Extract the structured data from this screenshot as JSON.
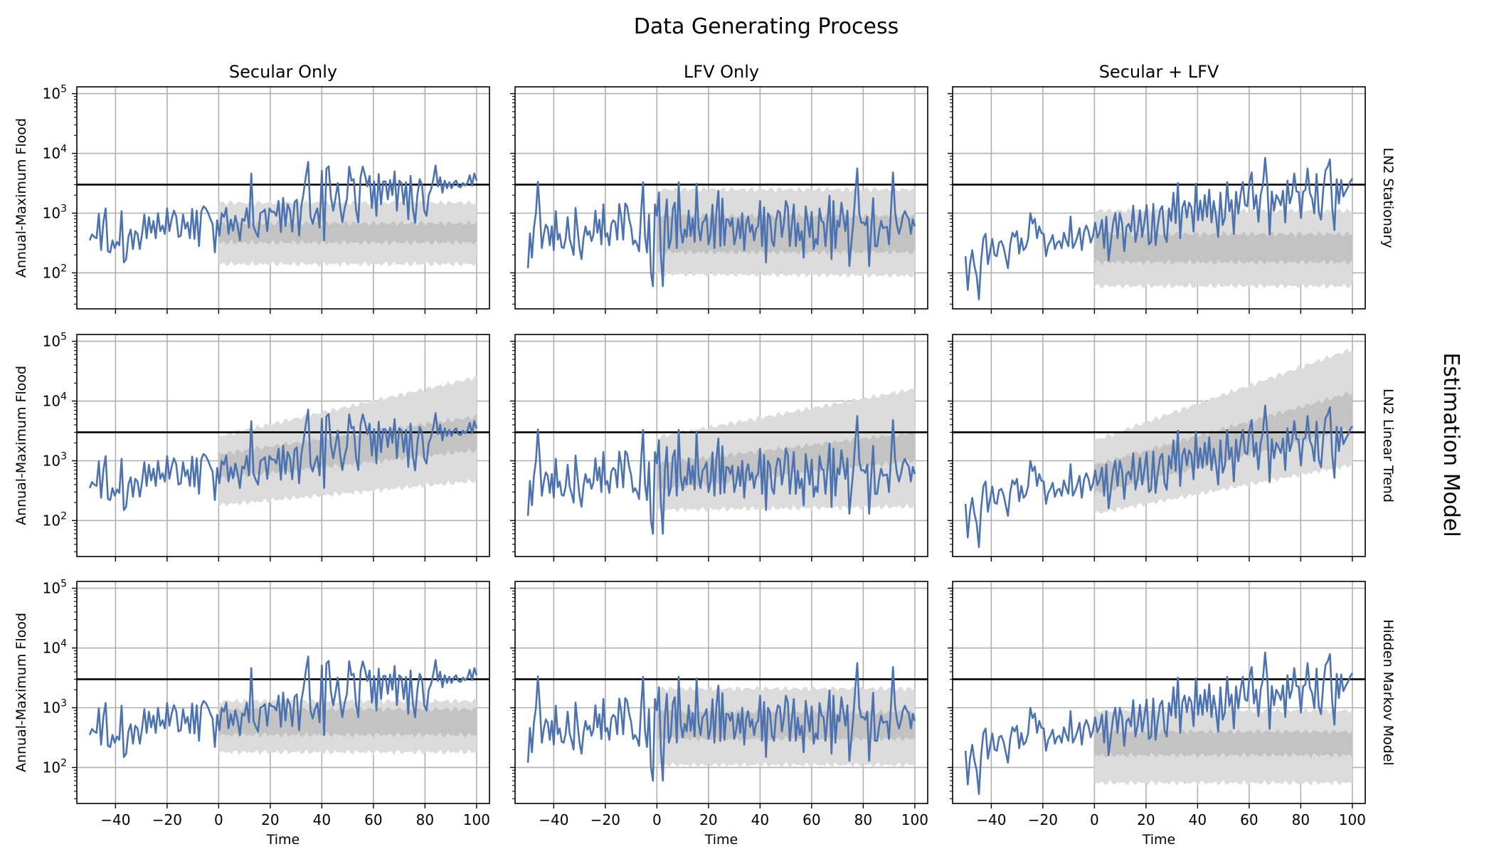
{
  "figure": {
    "title": "Data Generating Process",
    "side_title": "Estimation Model",
    "columns": [
      "Secular Only",
      "LFV Only",
      "Secular + LFV"
    ],
    "rows": [
      "LN2 Stationary",
      "LN2 Linear Trend",
      "Hidden Markov Model"
    ],
    "xlabel": "Time",
    "ylabel": "Annual-Maximum Flood",
    "colors": {
      "series": "#4c72b0",
      "threshold": "#000000",
      "band_outer": "#dcdcdc",
      "band_inner": "#c3c3c3",
      "grid": "#b0b0b0"
    }
  },
  "chart_data": {
    "type": "line",
    "yscale": "log",
    "xlim": [
      -55,
      105
    ],
    "ylim": [
      25,
      130000
    ],
    "x_ticks": [
      -40,
      -20,
      0,
      20,
      40,
      60,
      80,
      100
    ],
    "x_tick_labels": [
      "−40",
      "−20",
      "0",
      "20",
      "40",
      "60",
      "80",
      "100"
    ],
    "y_ticks": [
      100,
      1000,
      10000,
      100000
    ],
    "y_tick_labels": [
      [
        "10",
        "2"
      ],
      [
        "10",
        "3"
      ],
      [
        "10",
        "4"
      ],
      [
        "10",
        "5"
      ]
    ],
    "threshold": 3000,
    "grid": true,
    "x_start": -50,
    "x_step": 1,
    "series": [
      {
        "values": [
          350,
          440,
          400,
          380,
          980,
          240,
          700,
          1200,
          230,
          220,
          350,
          260,
          330,
          290,
          1080,
          150,
          170,
          400,
          530,
          250,
          500,
          450,
          250,
          450,
          950,
          380,
          860,
          470,
          740,
          380,
          1000,
          500,
          620,
          450,
          1200,
          500,
          800,
          1100,
          880,
          400,
          420,
          950,
          550,
          700,
          380,
          1180,
          370,
          1100,
          280,
          1050,
          1300,
          1200,
          1020,
          800,
          660,
          220,
          760,
          420,
          1000,
          860,
          1220,
          450,
          780,
          510,
          900,
          610,
          350,
          800,
          740,
          1210,
          570,
          4600,
          600,
          480,
          400,
          1000,
          1050,
          1150,
          500,
          1200,
          1050,
          1050,
          900,
          1600,
          480,
          1800,
          610,
          1400,
          1120,
          490,
          1520,
          1680,
          420,
          1300,
          2200,
          4200,
          7200,
          890,
          660,
          950,
          1200,
          570,
          5100,
          350,
          5500,
          6100,
          1800,
          1100,
          1800,
          3200,
          1300,
          700,
          1200,
          1700,
          6000,
          3500,
          3700,
          1150,
          700,
          4000,
          6000,
          4300,
          2800,
          4200,
          1220,
          3400,
          900,
          4500,
          1400,
          3400,
          3400,
          1700,
          3600,
          2000,
          5000,
          1100,
          3500,
          3200,
          1400,
          3300,
          790,
          4200,
          1200,
          690,
          2000,
          3700,
          3000,
          1100,
          900,
          2000,
          2500,
          3700,
          6300,
          2800,
          4000,
          2200,
          3500,
          2600,
          3300,
          2600,
          3200,
          3500,
          2800,
          2700,
          3200,
          2900,
          3200,
          4300,
          2900,
          4600,
          3500
        ],
        "band": {
          "x_start": 0,
          "x_end": 100,
          "outer": {
            "LN2 Stationary": {
              "lo": [
                140,
                140
              ],
              "hi": [
                1500,
                1500
              ]
            },
            "LN2 Linear Trend": {
              "lo": [
                180,
                460
              ],
              "hi": [
                2600,
                25000
              ]
            },
            "Hidden Markov Model": {
              "lo": [
                180,
                180
              ],
              "hi": [
                1300,
                1300
              ]
            }
          },
          "inner": {
            "LN2 Stationary": {
              "lo": [
                320,
                320
              ],
              "hi": [
                680,
                680
              ]
            },
            "LN2 Linear Trend": {
              "lo": [
                500,
                1500
              ],
              "hi": [
                1300,
                5500
              ]
            },
            "Hidden Markov Model": {
              "lo": [
                350,
                350
              ],
              "hi": [
                950,
                950
              ]
            }
          }
        }
      },
      {
        "values": [
          120,
          460,
          180,
          560,
          1000,
          3350,
          1020,
          260,
          440,
          640,
          560,
          290,
          600,
          240,
          1080,
          360,
          450,
          270,
          260,
          370,
          860,
          370,
          280,
          200,
          1220,
          540,
          260,
          170,
          380,
          600,
          430,
          500,
          340,
          430,
          1100,
          470,
          780,
          300,
          1400,
          400,
          460,
          290,
          650,
          760,
          700,
          360,
          1420,
          870,
          360,
          1450,
          1300,
          800,
          580,
          300,
          350,
          300,
          230,
          1000,
          3300,
          410,
          220,
          940,
          100,
          60,
          1400,
          900,
          2200,
          200,
          60,
          680,
          1700,
          260,
          350,
          1180,
          1500,
          260,
          3300,
          540,
          320,
          540,
          400,
          1100,
          410,
          820,
          330,
          3100,
          560,
          350,
          690,
          760,
          950,
          300,
          440,
          1390,
          260,
          1070,
          2350,
          280,
          1760,
          290,
          790,
          770,
          600,
          830,
          300,
          430,
          790,
          380,
          1000,
          240,
          660,
          880,
          480,
          640,
          350,
          550,
          600,
          1600,
          280,
          1250,
          150,
          1000,
          840,
          340,
          280,
          750,
          1100,
          1020,
          400,
          670,
          1600,
          1240,
          280,
          630,
          1400,
          280,
          680,
          350,
          500,
          180,
          1300,
          720,
          400,
          1050,
          250,
          370,
          300,
          1200,
          740,
          700,
          280,
          740,
          1950,
          170,
          1600,
          260,
          750,
          590,
          1500,
          860,
          500,
          1100,
          130,
          300,
          700,
          2100,
          5600,
          1000,
          690,
          700,
          630,
          860,
          130,
          520,
          1780,
          280,
          280,
          490,
          740,
          560,
          580,
          590,
          300,
          1090,
          4800,
          1100,
          620,
          450,
          600,
          900,
          1080,
          900,
          800,
          450,
          790,
          600
        ],
        "band": {
          "x_start": 0,
          "x_end": 100,
          "outer": {
            "LN2 Stationary": {
              "lo": [
                95,
                90
              ],
              "hi": [
                2500,
                2500
              ]
            },
            "LN2 Linear Trend": {
              "lo": [
                150,
                170
              ],
              "hi": [
                2500,
                16000
              ]
            },
            "Hidden Markov Model": {
              "lo": [
                110,
                110
              ],
              "hi": [
                2100,
                2100
              ]
            }
          },
          "inner": {
            "LN2 Stationary": {
              "lo": [
                220,
                220
              ],
              "hi": [
                900,
                900
              ]
            },
            "LN2 Linear Trend": {
              "lo": [
                330,
                1000
              ],
              "hi": [
                900,
                3000
              ]
            },
            "Hidden Markov Model": {
              "lo": [
                300,
                300
              ],
              "hi": [
                850,
                850
              ]
            }
          }
        }
      },
      {
        "values": [
          190,
          52,
          140,
          240,
          130,
          90,
          36,
          160,
          380,
          450,
          140,
          230,
          370,
          200,
          190,
          320,
          340,
          270,
          180,
          120,
          300,
          470,
          400,
          500,
          210,
          380,
          240,
          270,
          370,
          1000,
          670,
          800,
          380,
          600,
          460,
          450,
          190,
          290,
          340,
          430,
          250,
          320,
          340,
          260,
          470,
          350,
          280,
          880,
          260,
          310,
          400,
          560,
          240,
          480,
          620,
          500,
          320,
          420,
          690,
          390,
          480,
          770,
          260,
          870,
          160,
          330,
          680,
          1000,
          380,
          1000,
          700,
          230,
          590,
          660,
          490,
          1340,
          330,
          510,
          1120,
          400,
          710,
          1370,
          300,
          330,
          1430,
          290,
          620,
          1120,
          1310,
          420,
          330,
          1200,
          740,
          2200,
          680,
          3200,
          380,
          1250,
          1600,
          840,
          1500,
          1250,
          490,
          3100,
          760,
          1630,
          760,
          2000,
          870,
          2470,
          700,
          1600,
          900,
          400,
          2200,
          630,
          830,
          3300,
          1070,
          1660,
          450,
          2270,
          980,
          2000,
          3300,
          1380,
          1300,
          3300,
          4800,
          1180,
          2000,
          720,
          2000,
          3000,
          8400,
          3000,
          440,
          2300,
          1100,
          2000,
          1700,
          1350,
          2370,
          700,
          3500,
          1450,
          2000,
          4600,
          2300,
          2270,
          830,
          2270,
          2450,
          5600,
          2160,
          1760,
          990,
          4500,
          1050,
          780,
          2450,
          5200,
          6000,
          7900,
          1250,
          520,
          3700,
          1450,
          3600,
          1900,
          2300,
          2700,
          3300,
          3800
        ],
        "band": {
          "x_start": 0,
          "x_end": 100,
          "outer": {
            "LN2 Stationary": {
              "lo": [
                60,
                60
              ],
              "hi": [
                1100,
                1100
              ]
            },
            "LN2 Linear Trend": {
              "lo": [
                130,
                850
              ],
              "hi": [
                2200,
                75000
              ]
            },
            "Hidden Markov Model": {
              "lo": [
                55,
                55
              ],
              "hi": [
                900,
                900
              ]
            }
          },
          "inner": {
            "LN2 Stationary": {
              "lo": [
                150,
                150
              ],
              "hi": [
                450,
                450
              ]
            },
            "LN2 Linear Trend": {
              "lo": [
                280,
                3500
              ],
              "hi": [
                850,
                14000
              ]
            },
            "Hidden Markov Model": {
              "lo": [
                160,
                160
              ],
              "hi": [
                400,
                400
              ]
            }
          }
        }
      }
    ]
  }
}
